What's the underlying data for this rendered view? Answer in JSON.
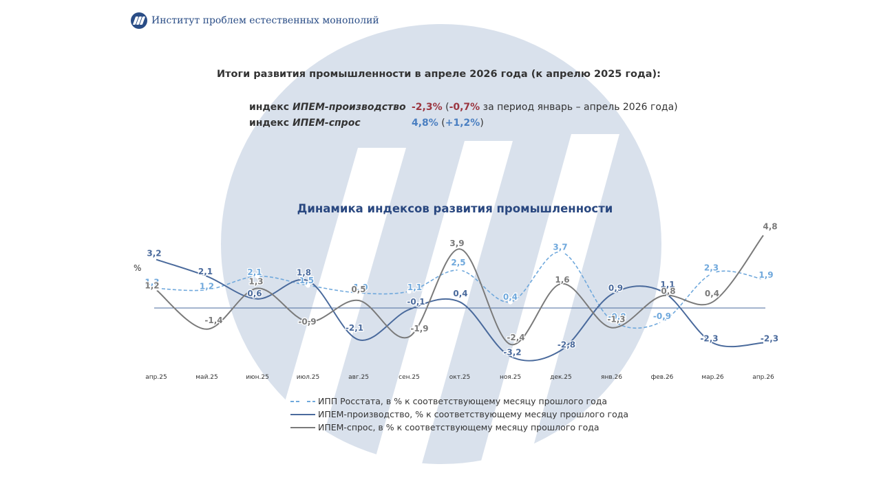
{
  "header": {
    "organization": "Институт проблем естественных монополий"
  },
  "summary": {
    "title": "Итоги развития промышленности в апреле 2026 года (к апрелю 2025 года):",
    "rows": [
      {
        "prefix": "индекс ",
        "name": "ИПЕМ-производство",
        "value": "-2,3%",
        "open": " (",
        "period_value": "-0,7%",
        "period_text": " за период январь – апрель 2026 года)"
      },
      {
        "prefix": "индекс ",
        "name": "ИПЕМ-спрос",
        "value": "4,8%",
        "open": " (",
        "period_value": "+1,2%",
        "period_text": ")"
      }
    ]
  },
  "colors": {
    "rosstat": "#6fa8dc",
    "production": "#4a6a9c",
    "demand": "#7a7a7a",
    "negative": "#9b3640",
    "positive": "#4a7fc1",
    "title": "#2a4880",
    "watermark": "#d9e1ec"
  },
  "chart_data": {
    "type": "line",
    "title": "Динамика индексов развития промышленности",
    "ylabel": "%",
    "categories": [
      "апр.25",
      "май.25",
      "июн.25",
      "июл.25",
      "авг.25",
      "сен.25",
      "окт.25",
      "ноя.25",
      "дек.25",
      "янв.26",
      "фев.26",
      "мар.26",
      "апр.26"
    ],
    "series": [
      {
        "name": "ИПП Росстата, в % к соответствующему месяцу прошлого года",
        "style": "dashed-markers",
        "values": [
          1.3,
          1.2,
          2.1,
          1.5,
          1.0,
          1.1,
          2.5,
          0.4,
          3.7,
          -0.8,
          -0.9,
          2.3,
          1.9
        ],
        "labels": [
          "1,3",
          "1,2",
          "2,1",
          "1,5",
          "1,0",
          "1,1",
          "2,5",
          "0,4",
          "3,7",
          "-0,8",
          "-0,9",
          "2,3",
          "1,9"
        ]
      },
      {
        "name": "ИПЕМ-производство, % к соответствующему месяцу прошлого года",
        "style": "solid",
        "values": [
          3.2,
          2.1,
          0.6,
          1.8,
          -2.1,
          -0.1,
          0.4,
          -3.2,
          -2.8,
          0.9,
          1.1,
          -2.3,
          -2.3
        ],
        "labels": [
          "3,2",
          "2,1",
          "0,6",
          "1,8",
          "-2,1",
          "-0,1",
          "0,4",
          "-3,2",
          "-2,8",
          "0,9",
          "1,1",
          "-2,3",
          "-2,3"
        ]
      },
      {
        "name": "ИПЕМ-спрос, в % к соответствующему месяцу прошлого года",
        "style": "solid",
        "values": [
          1.2,
          -1.4,
          1.3,
          -0.9,
          0.5,
          -1.9,
          3.9,
          -2.4,
          1.6,
          -1.3,
          0.8,
          0.4,
          4.8
        ],
        "labels": [
          "1,2",
          "-1,4",
          "1,3",
          "-0,9",
          "0,5",
          "-1,9",
          "3,9",
          "-2,4",
          "1,6",
          "-1,3",
          "0,8",
          "0,4",
          "4,8"
        ]
      }
    ],
    "legend_position": "bottom"
  }
}
